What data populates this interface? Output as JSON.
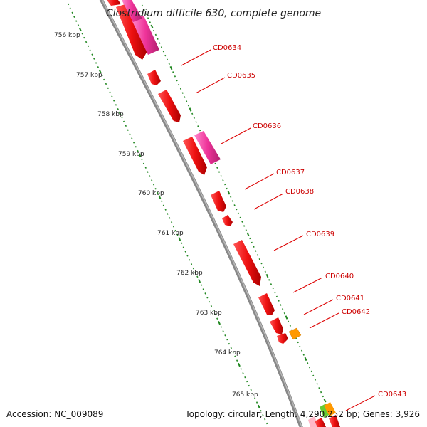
{
  "title": "Clostridium difficile 630, complete genome",
  "footer": {
    "accession": "Accession: NC_009089",
    "summary": "Topology: circular; Length: 4,290,252 bp; Genes: 3,926"
  },
  "scale_labels": [
    "756 kbp",
    "757 kbp",
    "758 kbp",
    "759 kbp",
    "760 kbp",
    "761 kbp",
    "762 kbp",
    "763 kbp",
    "764 kbp",
    "765 kbp"
  ],
  "gene_labels": [
    "CD0634",
    "CD0635",
    "CD0636",
    "CD0637",
    "CD0638",
    "CD0639",
    "CD0640",
    "CD0641",
    "CD0642",
    "CD0643"
  ],
  "colors": {
    "gene_main": "#ee1111",
    "gene_pink": "#ee3399",
    "gene_orange": "#ff9900",
    "tick": "#228822",
    "backbone": "#888888",
    "label_line": "#dd0000"
  }
}
